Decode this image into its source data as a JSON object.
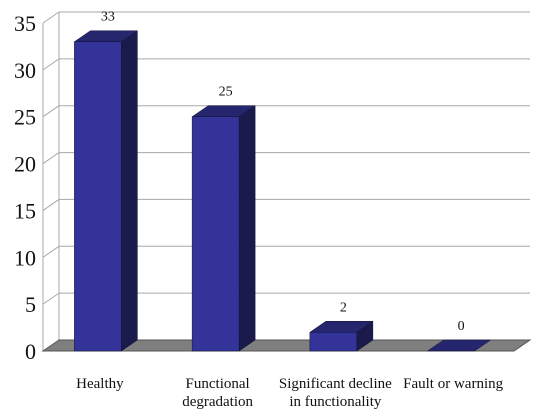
{
  "chart_data": {
    "type": "bar",
    "categories": [
      [
        "Healthy"
      ],
      [
        "Functional",
        "degradation"
      ],
      [
        "Significant  decline",
        "in functionality"
      ],
      [
        "Fault or warning"
      ]
    ],
    "values": [
      33,
      25,
      2,
      0
    ],
    "data_labels": [
      "33",
      "25",
      "2",
      "0"
    ],
    "ylim": [
      0,
      35
    ],
    "yticks": [
      0,
      5,
      10,
      15,
      20,
      25,
      30,
      35
    ],
    "grid": true,
    "style": "3d-bar",
    "colors": {
      "bar_front": "#333399",
      "bar_top": "#26266e",
      "bar_side": "#1a1a4d",
      "floor": "#7f7f7f",
      "floor_edge": "#555555",
      "grid": "#a8a8a8",
      "text": "#111111"
    }
  }
}
